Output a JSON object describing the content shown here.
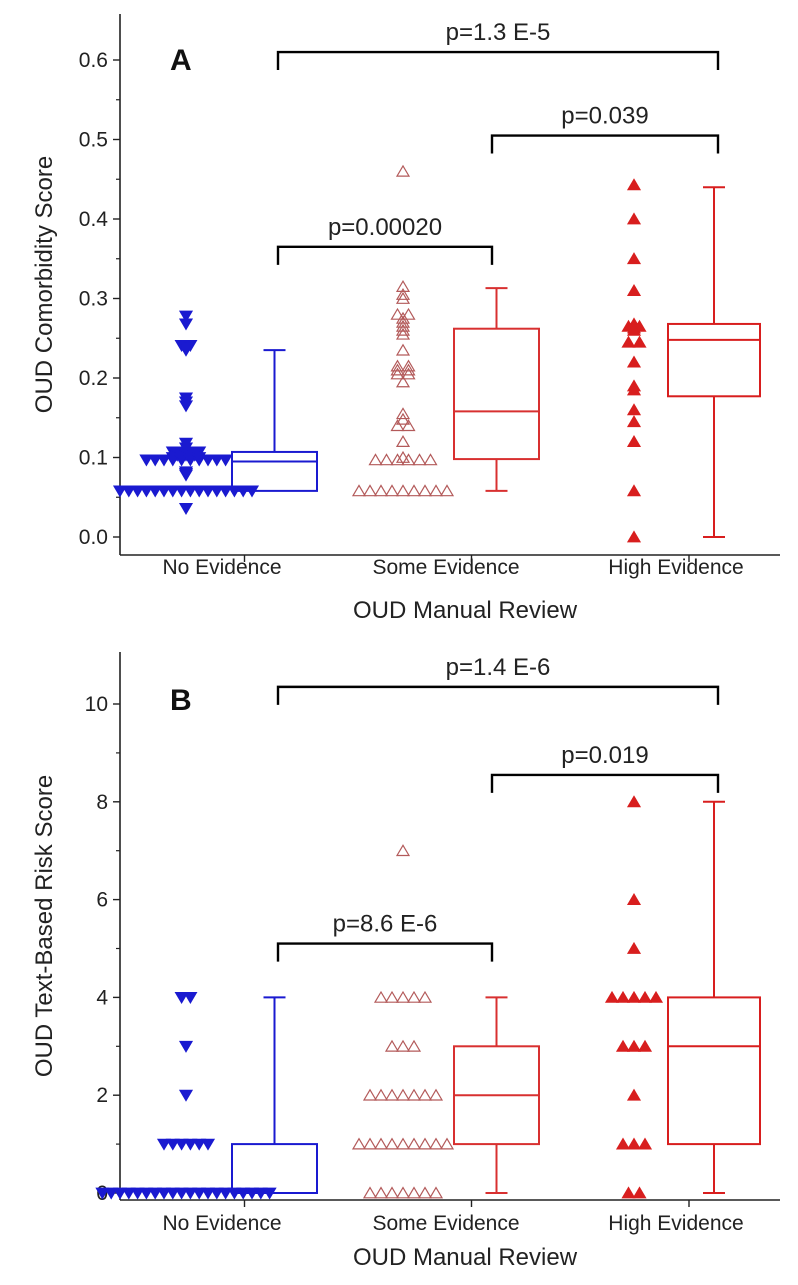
{
  "colors": {
    "no": "#1a1ad0",
    "some": "#b35a5a",
    "high": "#d81e1e",
    "box_some": "#d83030",
    "box_high": "#d81e1e",
    "bracket": "#000000",
    "axis": "#222222"
  },
  "chart_data": [
    {
      "type": "box",
      "panel_label": "A",
      "xlabel": "OUD Manual Review",
      "ylabel": "OUD Comorbidity Score",
      "ylim": [
        0,
        0.65
      ],
      "yticks": [
        0.0,
        0.1,
        0.2,
        0.3,
        0.4,
        0.5,
        0.6
      ],
      "ytick_labels": [
        "0.0",
        "0.1",
        "0.2",
        "0.3",
        "0.4",
        "0.5",
        "0.6"
      ],
      "categories": [
        "No Evidence",
        "Some Evidence",
        "High Evidence"
      ],
      "boxes": [
        {
          "group": "No Evidence",
          "whisker_low": 0.058,
          "q1": 0.058,
          "median": 0.095,
          "q3": 0.107,
          "whisker_high": 0.235
        },
        {
          "group": "Some Evidence",
          "whisker_low": 0.058,
          "q1": 0.098,
          "median": 0.158,
          "q3": 0.262,
          "whisker_high": 0.313
        },
        {
          "group": "High Evidence",
          "whisker_low": 0.0,
          "q1": 0.177,
          "median": 0.248,
          "q3": 0.268,
          "whisker_high": 0.44
        }
      ],
      "points": [
        {
          "group": "No Evidence",
          "marker": "triangle-down",
          "values": [
            0.278,
            0.268,
            0.241,
            0.241,
            0.238,
            0.235,
            0.175,
            0.17,
            0.165,
            0.118,
            0.112,
            0.107,
            0.107,
            0.107,
            0.107,
            0.103,
            0.103,
            0.103,
            0.1,
            0.1,
            0.1,
            0.1,
            0.097,
            0.097,
            0.097,
            0.097,
            0.097,
            0.097,
            0.097,
            0.097,
            0.097,
            0.097,
            0.082,
            0.08,
            0.078,
            0.058,
            0.058,
            0.058,
            0.058,
            0.058,
            0.058,
            0.058,
            0.058,
            0.058,
            0.058,
            0.058,
            0.058,
            0.058,
            0.058,
            0.058,
            0.058,
            0.036
          ]
        },
        {
          "group": "Some Evidence",
          "marker": "triangle-open",
          "values": [
            0.46,
            0.315,
            0.305,
            0.3,
            0.28,
            0.28,
            0.275,
            0.27,
            0.265,
            0.26,
            0.255,
            0.235,
            0.215,
            0.215,
            0.21,
            0.21,
            0.205,
            0.205,
            0.195,
            0.155,
            0.148,
            0.14,
            0.14,
            0.12,
            0.1,
            0.097,
            0.097,
            0.097,
            0.097,
            0.097,
            0.097,
            0.058,
            0.058,
            0.058,
            0.058,
            0.058,
            0.058,
            0.058,
            0.058,
            0.058
          ]
        },
        {
          "group": "High Evidence",
          "marker": "triangle-filled",
          "values": [
            0.443,
            0.4,
            0.35,
            0.31,
            0.268,
            0.265,
            0.265,
            0.263,
            0.26,
            0.245,
            0.245,
            0.22,
            0.19,
            0.185,
            0.16,
            0.145,
            0.12,
            0.058,
            0.0
          ]
        }
      ],
      "comparisons": [
        {
          "from": "No Evidence",
          "to": "High Evidence",
          "label": "p=1.3 E-5",
          "y": 0.61
        },
        {
          "from": "Some Evidence",
          "to": "High Evidence",
          "label": "p=0.039",
          "y": 0.505
        },
        {
          "from": "No Evidence",
          "to": "Some Evidence",
          "label": "p=0.00020",
          "y": 0.365
        }
      ]
    },
    {
      "type": "box",
      "panel_label": "B",
      "xlabel": "OUD Manual Review",
      "ylabel": "OUD Text-Based Risk Score",
      "ylim": [
        0,
        11
      ],
      "yticks": [
        0,
        2,
        4,
        6,
        8,
        10
      ],
      "ytick_labels": [
        "0",
        "2",
        "4",
        "6",
        "8",
        "10"
      ],
      "categories": [
        "No Evidence",
        "Some Evidence",
        "High Evidence"
      ],
      "boxes": [
        {
          "group": "No Evidence",
          "whisker_low": 0,
          "q1": 0,
          "median": 0,
          "q3": 1,
          "whisker_high": 4
        },
        {
          "group": "Some Evidence",
          "whisker_low": 0,
          "q1": 1,
          "median": 2,
          "q3": 3,
          "whisker_high": 4
        },
        {
          "group": "High Evidence",
          "whisker_low": 0,
          "q1": 1,
          "median": 3,
          "q3": 4,
          "whisker_high": 8
        }
      ],
      "points": [
        {
          "group": "No Evidence",
          "marker": "triangle-down",
          "values": [
            4,
            4,
            3,
            2,
            1,
            1,
            1,
            1,
            1,
            1,
            0,
            0,
            0,
            0,
            0,
            0,
            0,
            0,
            0,
            0,
            0,
            0,
            0,
            0,
            0,
            0,
            0,
            0,
            0,
            0
          ]
        },
        {
          "group": "Some Evidence",
          "marker": "triangle-open",
          "values": [
            7,
            4,
            4,
            4,
            4,
            4,
            3,
            3,
            3,
            2,
            2,
            2,
            2,
            2,
            2,
            2,
            1,
            1,
            1,
            1,
            1,
            1,
            1,
            1,
            1,
            0,
            0,
            0,
            0,
            0,
            0,
            0
          ]
        },
        {
          "group": "High Evidence",
          "marker": "triangle-filled",
          "values": [
            8,
            6,
            5,
            4,
            4,
            4,
            4,
            4,
            3,
            3,
            3,
            2,
            1,
            1,
            1,
            0,
            0
          ]
        }
      ],
      "comparisons": [
        {
          "from": "No Evidence",
          "to": "High Evidence",
          "label": "p=1.4 E-6",
          "y": 10.35
        },
        {
          "from": "Some Evidence",
          "to": "High Evidence",
          "label": "p=0.019",
          "y": 8.55
        },
        {
          "from": "No Evidence",
          "to": "Some Evidence",
          "label": "p=8.6 E-6",
          "y": 5.1
        }
      ]
    }
  ]
}
